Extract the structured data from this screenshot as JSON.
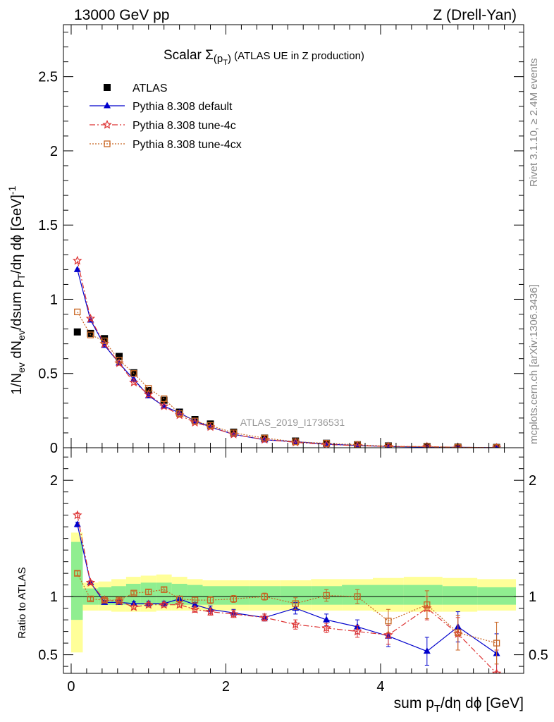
{
  "header": {
    "left": "13000 GeV pp",
    "right": "Z (Drell-Yan)",
    "side_top": "Rivet 3.1.10, ≥ 2.4M events",
    "side_bottom": "mcplots.cern.ch [arXiv:1306.3436]",
    "watermark": "ATLAS_2019_I1736531"
  },
  "chart_data": {
    "type": "scatter",
    "title_main": "Scalar Σ",
    "title_sub": "(p",
    "title_subsub": "T",
    "title_close": ")",
    "title_rest": " (ATLAS UE in Z production)",
    "xlabel": "sum p",
    "xlabel_sub": "T",
    "xlabel_rest": "/dη dϕ [GeV]",
    "ylabel_top": "1/N",
    "ylabel_top_sub": "ev",
    "ylabel_top_mid": " dN",
    "ylabel_top_mid_sub": "ev",
    "ylabel_top_rest": "/dsum p",
    "ylabel_top_rest_sub": "T",
    "ylabel_top_end": "/dη dϕ  [GeV]",
    "ylabel_top_sup": "-1",
    "ylabel_ratio": "Ratio to ATLAS",
    "xlim": [
      -0.1,
      5.85
    ],
    "ylim_main": [
      0,
      2.85
    ],
    "ylim_ratio": [
      0.34,
      2.28
    ],
    "x_ticks": [
      "0",
      "2",
      "4"
    ],
    "y_ticks_main": [
      "0",
      "0.5",
      "1",
      "1.5",
      "2",
      "2.5"
    ],
    "y_ticks_ratio": [
      "0.5",
      "1",
      "2"
    ],
    "x": [
      0.08,
      0.25,
      0.43,
      0.62,
      0.81,
      1.0,
      1.2,
      1.4,
      1.6,
      1.8,
      2.1,
      2.5,
      2.9,
      3.3,
      3.7,
      4.1,
      4.6,
      5.0,
      5.5
    ],
    "bins": [
      0,
      0.15,
      0.35,
      0.52,
      0.71,
      0.9,
      1.1,
      1.3,
      1.5,
      1.7,
      1.9,
      2.3,
      2.7,
      3.1,
      3.5,
      3.9,
      4.3,
      4.8,
      5.25,
      5.75
    ],
    "band_yellow": [
      [
        0.52,
        1.55
      ],
      [
        0.88,
        1.12
      ],
      [
        0.88,
        1.13
      ],
      [
        0.87,
        1.15
      ],
      [
        0.87,
        1.17
      ],
      [
        0.87,
        1.18
      ],
      [
        0.88,
        1.19
      ],
      [
        0.88,
        1.17
      ],
      [
        0.88,
        1.15
      ],
      [
        0.88,
        1.14
      ],
      [
        0.88,
        1.14
      ],
      [
        0.88,
        1.14
      ],
      [
        0.88,
        1.14
      ],
      [
        0.88,
        1.15
      ],
      [
        0.88,
        1.15
      ],
      [
        0.87,
        1.16
      ],
      [
        0.87,
        1.17
      ],
      [
        0.87,
        1.16
      ],
      [
        0.88,
        1.15
      ]
    ],
    "band_green": [
      [
        0.8,
        1.47
      ],
      [
        0.93,
        1.07
      ],
      [
        0.93,
        1.08
      ],
      [
        0.93,
        1.09
      ],
      [
        0.93,
        1.11
      ],
      [
        0.93,
        1.12
      ],
      [
        0.93,
        1.12
      ],
      [
        0.93,
        1.11
      ],
      [
        0.93,
        1.1
      ],
      [
        0.93,
        1.09
      ],
      [
        0.93,
        1.09
      ],
      [
        0.93,
        1.09
      ],
      [
        0.93,
        1.09
      ],
      [
        0.93,
        1.09
      ],
      [
        0.93,
        1.1
      ],
      [
        0.93,
        1.1
      ],
      [
        0.93,
        1.1
      ],
      [
        0.93,
        1.09
      ],
      [
        0.93,
        1.08
      ]
    ],
    "series": [
      {
        "name": "ATLAS",
        "color": "#000000",
        "marker": "square",
        "values": [
          0.78,
          0.77,
          0.735,
          0.615,
          0.505,
          0.385,
          0.32,
          0.24,
          0.19,
          0.16,
          0.105,
          0.065,
          0.045,
          0.03,
          0.02,
          0.012,
          0.008,
          0.004,
          0.002
        ],
        "ratio": [
          1,
          1,
          1,
          1,
          1,
          1,
          1,
          1,
          1,
          1,
          1,
          1,
          1,
          1,
          1,
          1,
          1,
          1,
          1
        ]
      },
      {
        "name": "Pythia 8.308 default",
        "color": "#0000cc",
        "marker": "triangle",
        "line": "solid",
        "values": [
          1.2,
          0.86,
          0.69,
          0.57,
          0.46,
          0.35,
          0.28,
          0.235,
          0.18,
          0.14,
          0.09,
          0.053,
          0.041,
          0.024,
          0.015,
          0.008,
          0.004,
          0.003,
          0.001
        ],
        "ratio": [
          1.62,
          1.12,
          0.95,
          0.95,
          0.94,
          0.94,
          0.94,
          0.98,
          0.93,
          0.89,
          0.86,
          0.82,
          0.9,
          0.8,
          0.74,
          0.66,
          0.53,
          0.74,
          0.51
        ],
        "ratio_err": [
          0.02,
          0.015,
          0.015,
          0.015,
          0.015,
          0.02,
          0.02,
          0.02,
          0.02,
          0.03,
          0.03,
          0.03,
          0.05,
          0.05,
          0.06,
          0.09,
          0.12,
          0.13,
          0.17
        ]
      },
      {
        "name": "Pythia 8.308 tune-4c",
        "color": "#dd3333",
        "marker": "star",
        "line": "dashdot",
        "values": [
          1.26,
          0.87,
          0.7,
          0.57,
          0.44,
          0.36,
          0.28,
          0.22,
          0.17,
          0.14,
          0.09,
          0.055,
          0.036,
          0.022,
          0.014,
          0.008,
          0.0072,
          0.0027,
          0.0006
        ],
        "ratio": [
          1.7,
          1.12,
          0.97,
          0.96,
          0.91,
          0.93,
          0.93,
          0.93,
          0.89,
          0.87,
          0.85,
          0.82,
          0.76,
          0.73,
          0.7,
          0.67,
          0.9,
          0.68,
          0.34
        ],
        "ratio_err": [
          0.02,
          0.015,
          0.015,
          0.015,
          0.015,
          0.02,
          0.02,
          0.02,
          0.025,
          0.03,
          0.03,
          0.03,
          0.04,
          0.04,
          0.05,
          0.08,
          0.1,
          0.14,
          0.2
        ]
      },
      {
        "name": "Pythia 8.308 tune-4cx",
        "color": "#c86420",
        "marker": "opensquare",
        "line": "dotted",
        "values": [
          0.915,
          0.76,
          0.72,
          0.59,
          0.5,
          0.4,
          0.33,
          0.23,
          0.18,
          0.15,
          0.1,
          0.065,
          0.04,
          0.03,
          0.02,
          0.01,
          0.007,
          0.003,
          0.001
        ],
        "ratio": [
          1.2,
          0.98,
          0.97,
          0.97,
          1.03,
          1.04,
          1.06,
          0.98,
          0.97,
          0.97,
          0.98,
          1.0,
          0.94,
          1.01,
          1.0,
          0.79,
          0.93,
          0.69,
          0.6
        ],
        "ratio_err": [
          0.02,
          0.015,
          0.015,
          0.015,
          0.015,
          0.02,
          0.02,
          0.02,
          0.025,
          0.03,
          0.03,
          0.03,
          0.05,
          0.05,
          0.06,
          0.1,
          0.12,
          0.15,
          0.18
        ]
      }
    ]
  }
}
